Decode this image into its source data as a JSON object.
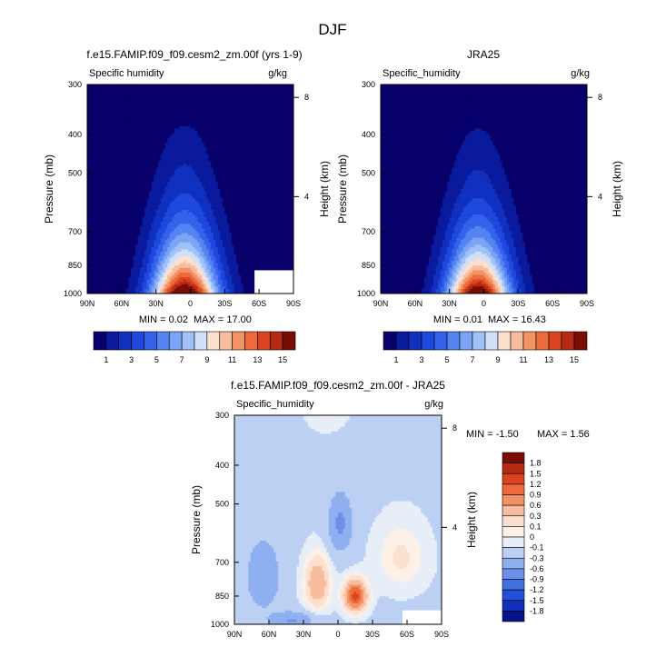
{
  "figure_title": "DJF",
  "chart_data": [
    {
      "type": "heatmap",
      "title": "f.e15.FAMIP.f09_f09.cesm2_zm.00f (yrs 1-9)",
      "variable": "Specific humidity",
      "units": "g/kg",
      "ylabel": "Pressure (mb)",
      "ylabel_right": "Height (km)",
      "x_ticks": [
        "90N",
        "60N",
        "30N",
        "0",
        "30S",
        "60S",
        "90S"
      ],
      "x_range": [
        90,
        -90
      ],
      "y_ticks": [
        "300",
        "400",
        "500",
        "700",
        "850",
        "1000"
      ],
      "y_range_mb": [
        300,
        1000
      ],
      "y_scale": "log",
      "height_ticks_km": [
        "8",
        "4"
      ],
      "min_label": "MIN =",
      "min_value": "0.02",
      "max_label": "MAX =",
      "max_value": "17.00",
      "data_max": 17.0,
      "max_latitude": 5,
      "missing_region": "southern high latitudes near surface",
      "colorbar_labels": [
        "1",
        "3",
        "5",
        "7",
        "9",
        "11",
        "13",
        "15"
      ],
      "contour_levels": [
        1,
        2,
        3,
        4,
        5,
        6,
        7,
        8,
        9,
        10,
        11,
        12,
        13,
        14,
        15
      ],
      "colors": [
        "#08006b",
        "#0a1a9c",
        "#1030c0",
        "#1f48dc",
        "#3462ea",
        "#5584f2",
        "#7aa4f5",
        "#a2c2f7",
        "#d0e0f8",
        "#fbe0cf",
        "#f7bd9e",
        "#f29366",
        "#ec6a3c",
        "#dc4420",
        "#b42a13",
        "#7a0c06"
      ]
    },
    {
      "type": "heatmap",
      "title": "JRA25",
      "variable": "Specific_humidity",
      "units": "g/kg",
      "ylabel": "Pressure (mb)",
      "ylabel_right": "Height (km)",
      "x_ticks": [
        "90N",
        "60N",
        "30N",
        "0",
        "30S",
        "60S",
        "90S"
      ],
      "x_range": [
        90,
        -90
      ],
      "y_ticks": [
        "300",
        "400",
        "500",
        "700",
        "850",
        "1000"
      ],
      "y_range_mb": [
        300,
        1000
      ],
      "y_scale": "log",
      "height_ticks_km": [
        "8",
        "4"
      ],
      "min_label": "MIN =",
      "min_value": "0.01",
      "max_label": "MAX =",
      "max_value": "16.43",
      "data_max": 16.43,
      "max_latitude": 5,
      "colorbar_labels": [
        "1",
        "3",
        "5",
        "7",
        "9",
        "11",
        "13",
        "15"
      ],
      "contour_levels": [
        1,
        2,
        3,
        4,
        5,
        6,
        7,
        8,
        9,
        10,
        11,
        12,
        13,
        14,
        15
      ],
      "colors": [
        "#08006b",
        "#0a1a9c",
        "#1030c0",
        "#1f48dc",
        "#3462ea",
        "#5584f2",
        "#7aa4f5",
        "#a2c2f7",
        "#d0e0f8",
        "#fbe0cf",
        "#f7bd9e",
        "#f29366",
        "#ec6a3c",
        "#dc4420",
        "#b42a13",
        "#7a0c06"
      ]
    },
    {
      "type": "heatmap",
      "title": "f.e15.FAMIP.f09_f09.cesm2_zm.00f - JRA25",
      "variable": "Specific_humidity",
      "units": "g/kg",
      "ylabel": "Pressure (mb)",
      "ylabel_right": "Height (km)",
      "x_ticks": [
        "90N",
        "60N",
        "30N",
        "0",
        "30S",
        "60S",
        "90S"
      ],
      "x_range": [
        90,
        -90
      ],
      "y_ticks": [
        "300",
        "400",
        "500",
        "700",
        "850",
        "1000"
      ],
      "y_range_mb": [
        300,
        1000
      ],
      "y_scale": "log",
      "height_ticks_km": [
        "8",
        "4"
      ],
      "min_label": "MIN =",
      "min_value": "-1.50",
      "max_label": "MAX =",
      "max_value": "1.56",
      "minimum_location": {
        "lat": -15,
        "pressure_mb": 850
      },
      "missing_region": "southern high latitudes near surface",
      "colorbar_labels": [
        "1.8",
        "1.5",
        "1.2",
        "0.9",
        "0.6",
        "0.3",
        "0.1",
        "0",
        "-0.1",
        "-0.3",
        "-0.6",
        "-0.9",
        "-1.2",
        "-1.5",
        "-1.8"
      ],
      "contour_levels": [
        -1.8,
        -1.5,
        -1.2,
        -0.9,
        -0.6,
        -0.3,
        -0.1,
        0,
        0.1,
        0.3,
        0.6,
        0.9,
        1.2,
        1.5,
        1.8
      ],
      "colors": [
        "#7a0c06",
        "#b42a13",
        "#dc4420",
        "#ec6a3c",
        "#f29366",
        "#f7bd9e",
        "#fbe0cf",
        "#fdf0e6",
        "#e8eef8",
        "#bcd0f4",
        "#8fb0f0",
        "#6a90ea",
        "#4470e2",
        "#2250d8",
        "#1030b8",
        "#08128a"
      ]
    }
  ]
}
